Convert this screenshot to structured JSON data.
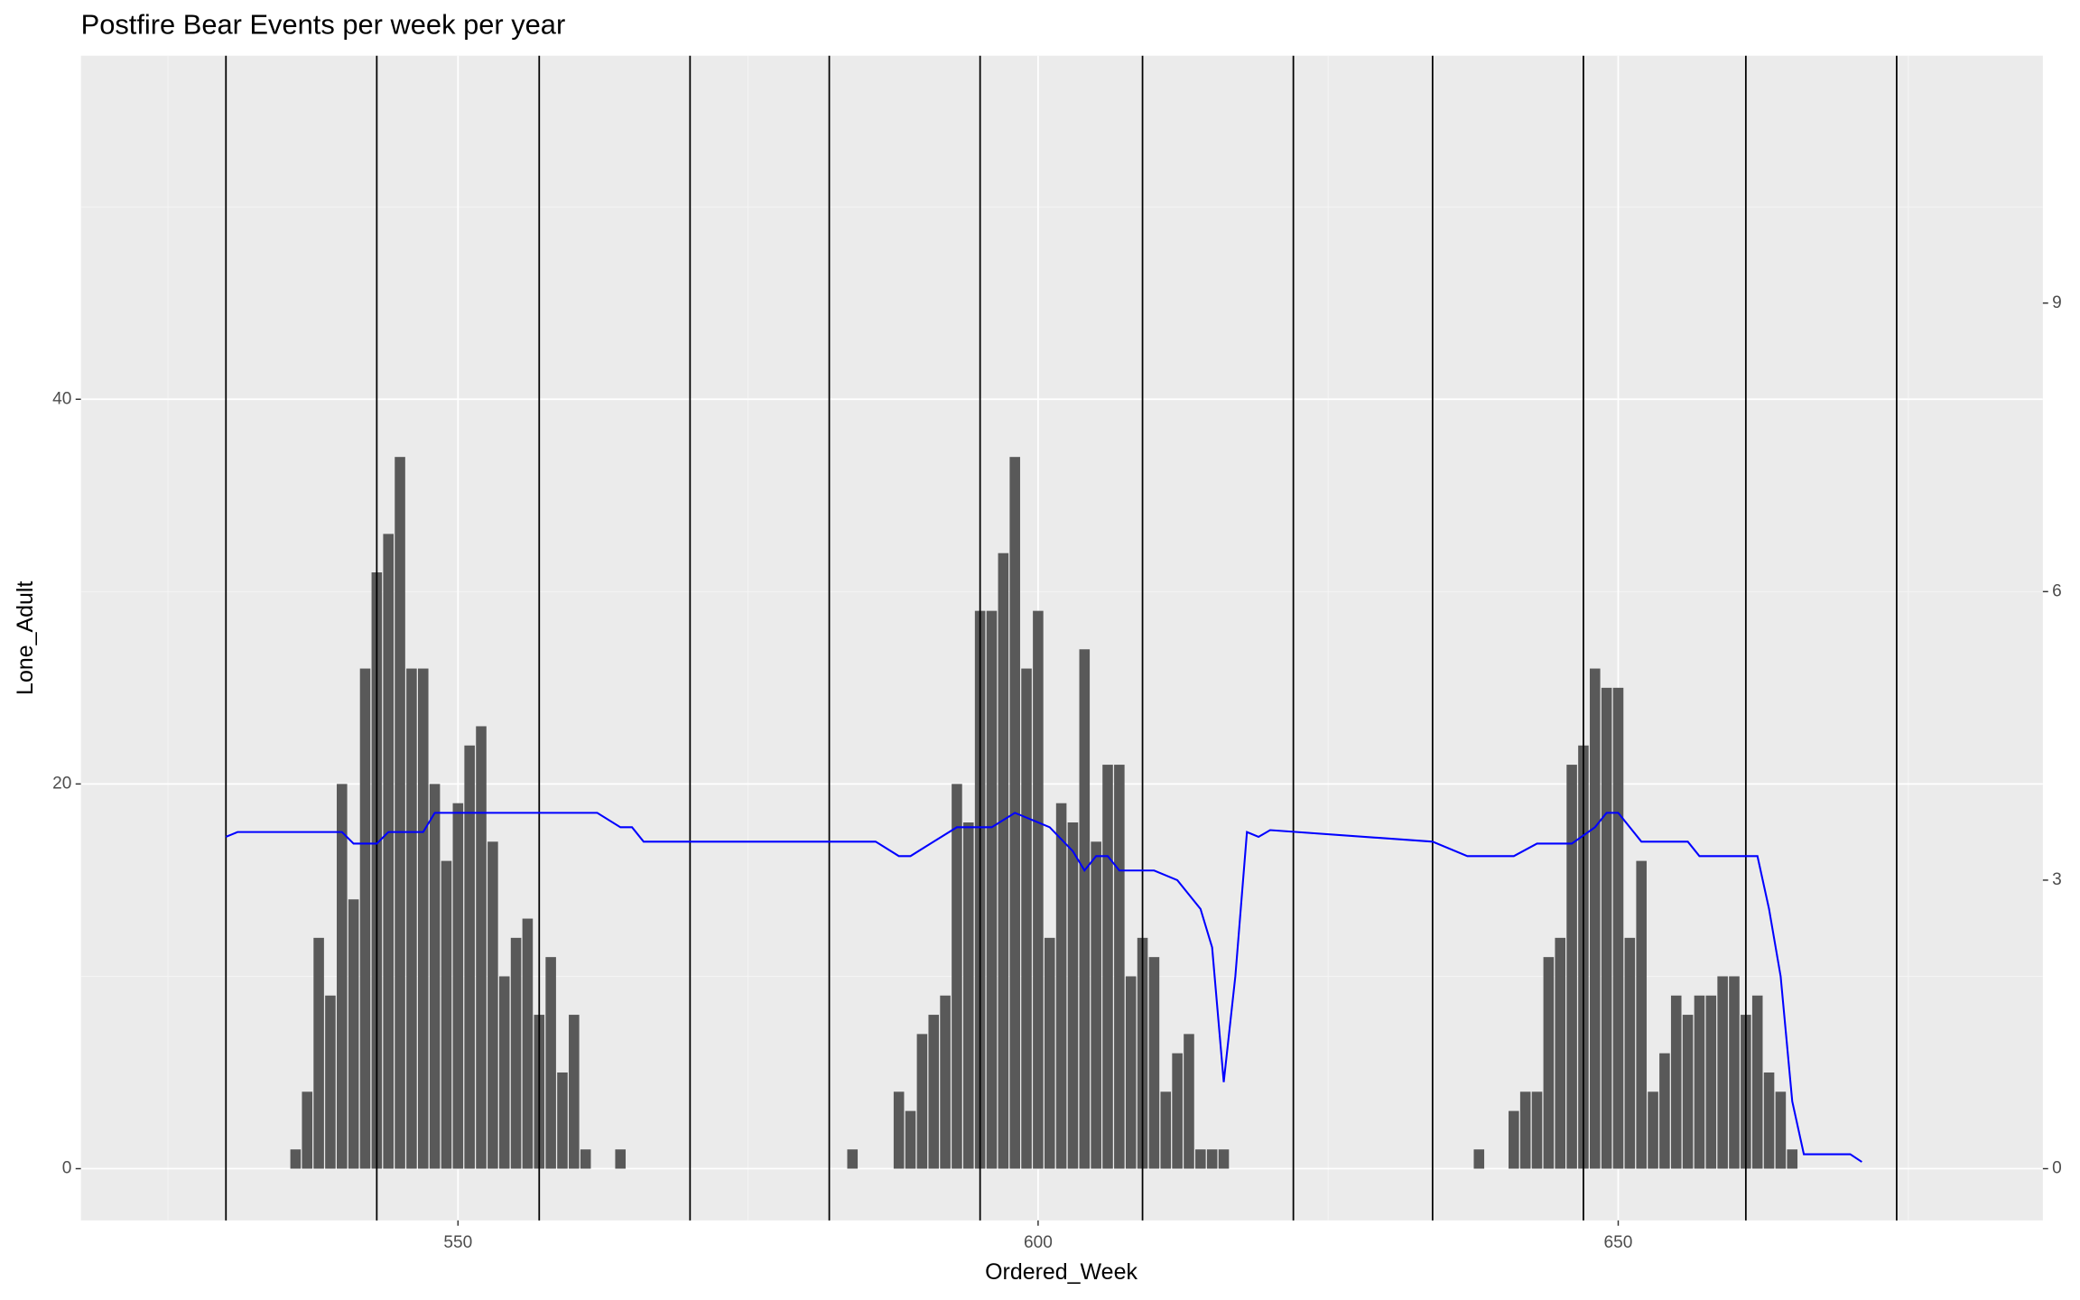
{
  "chart_data": {
    "type": "bar",
    "title": "Postfire Bear Events per week per year",
    "xlabel": "Ordered_Week",
    "ylabel": "Lone_Adult",
    "xlim": [
      517.5,
      686.6
    ],
    "ylim": [
      -2.69,
      57.86
    ],
    "y2lim": [
      -0.538,
      11.572
    ],
    "xticks": [
      550,
      600,
      650
    ],
    "xminor": [
      525,
      575,
      625,
      675
    ],
    "yticks": [
      0,
      20,
      40
    ],
    "yminor": [
      10,
      30,
      50
    ],
    "y2ticks": [
      0,
      3,
      6,
      9
    ],
    "grid": true,
    "vlines": [
      530,
      543,
      557,
      570,
      582,
      595,
      609,
      622,
      634,
      647,
      661,
      674
    ],
    "vline_color": "#000000",
    "series": [
      {
        "type": "bar",
        "color": "#595959",
        "x": [
          536,
          537,
          538,
          539,
          540,
          541,
          542,
          543,
          544,
          545,
          546,
          547,
          548,
          549,
          550,
          551,
          552,
          553,
          554,
          555,
          556,
          557,
          558,
          559,
          560,
          561,
          564,
          584,
          588,
          589,
          590,
          591,
          592,
          593,
          594,
          595,
          596,
          597,
          598,
          599,
          600,
          601,
          602,
          603,
          604,
          605,
          606,
          607,
          608,
          609,
          610,
          611,
          612,
          613,
          614,
          615,
          616,
          638,
          641,
          642,
          643,
          644,
          645,
          646,
          647,
          648,
          649,
          650,
          651,
          652,
          653,
          654,
          655,
          656,
          657,
          658,
          659,
          660,
          661,
          662,
          663,
          664,
          665
        ],
        "values": [
          1,
          4,
          12,
          9,
          20,
          14,
          26,
          31,
          33,
          37,
          26,
          26,
          20,
          16,
          19,
          22,
          23,
          17,
          10,
          12,
          13,
          8,
          11,
          5,
          8,
          1,
          1,
          1,
          4,
          3,
          7,
          8,
          9,
          20,
          18,
          29,
          29,
          32,
          37,
          26,
          29,
          12,
          19,
          18,
          27,
          17,
          21,
          21,
          10,
          12,
          11,
          4,
          6,
          7,
          1,
          1,
          1,
          1,
          3,
          4,
          4,
          11,
          12,
          21,
          22,
          26,
          25,
          25,
          12,
          16,
          4,
          6,
          9,
          8,
          9,
          9,
          10,
          10,
          8,
          9,
          5,
          4,
          1
        ]
      },
      {
        "type": "line",
        "axis": "y2",
        "color": "#0000ff",
        "x": [
          530,
          531,
          540,
          541,
          543,
          544,
          547,
          548,
          562,
          564,
          565,
          566,
          586,
          588,
          589,
          591,
          593,
          596,
          598,
          601,
          603,
          604,
          605,
          606,
          607,
          610,
          612,
          614,
          615,
          616,
          617,
          618,
          619,
          620,
          634,
          637,
          641,
          643,
          646,
          648,
          649,
          650,
          652,
          656,
          657,
          662,
          663,
          664,
          665,
          666,
          670,
          671
        ],
        "values": [
          3.45,
          3.5,
          3.5,
          3.38,
          3.38,
          3.5,
          3.5,
          3.7,
          3.7,
          3.55,
          3.55,
          3.4,
          3.4,
          3.25,
          3.25,
          3.4,
          3.55,
          3.55,
          3.7,
          3.55,
          3.3,
          3.1,
          3.25,
          3.25,
          3.1,
          3.1,
          3.0,
          2.7,
          2.3,
          0.9,
          2.0,
          3.5,
          3.45,
          3.52,
          3.4,
          3.25,
          3.25,
          3.38,
          3.38,
          3.55,
          3.7,
          3.7,
          3.4,
          3.4,
          3.25,
          3.25,
          2.7,
          2.0,
          0.7,
          0.15,
          0.15,
          0.07
        ]
      }
    ]
  }
}
